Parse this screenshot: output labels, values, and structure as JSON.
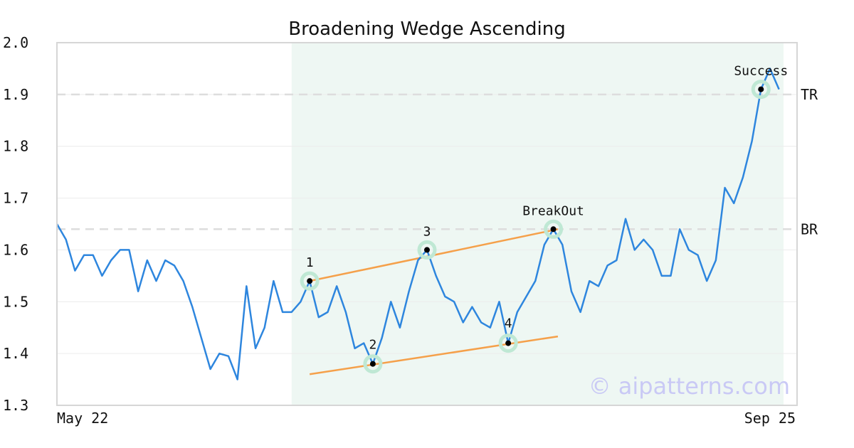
{
  "chart_data": {
    "type": "line",
    "title": "Broadening Wedge Ascending",
    "ylim": [
      1.3,
      2.0
    ],
    "y_ticks": [
      "1.3",
      "1.4",
      "1.5",
      "1.6",
      "1.7",
      "1.8",
      "1.9",
      "2.0"
    ],
    "x_range": [
      0,
      82
    ],
    "x_tick_labels": [
      {
        "label": "May 22",
        "x": 0
      },
      {
        "label": "Sep 25",
        "x": 82
      }
    ],
    "series": [
      {
        "values": [
          1.65,
          1.62,
          1.56,
          1.59,
          1.59,
          1.55,
          1.58,
          1.6,
          1.6,
          1.52,
          1.58,
          1.54,
          1.58,
          1.57,
          1.54,
          1.49,
          1.43,
          1.37,
          1.4,
          1.395,
          1.35,
          1.53,
          1.41,
          1.45,
          1.54,
          1.48,
          1.48,
          1.5,
          1.54,
          1.47,
          1.48,
          1.53,
          1.48,
          1.41,
          1.42,
          1.38,
          1.43,
          1.5,
          1.45,
          1.52,
          1.58,
          1.6,
          1.55,
          1.51,
          1.5,
          1.46,
          1.49,
          1.46,
          1.45,
          1.5,
          1.42,
          1.48,
          1.51,
          1.54,
          1.61,
          1.64,
          1.61,
          1.52,
          1.48,
          1.54,
          1.53,
          1.57,
          1.58,
          1.66,
          1.6,
          1.62,
          1.6,
          1.55,
          1.55,
          1.64,
          1.6,
          1.59,
          1.54,
          1.58,
          1.72,
          1.69,
          1.74,
          1.81,
          1.91,
          1.95,
          1.91
        ],
        "color": "#2e86de"
      }
    ],
    "pattern_region": {
      "x_start": 26,
      "x_end": 80.5,
      "color": "#eef7f3"
    },
    "reference_lines": [
      {
        "label": "TR",
        "y": 1.9
      },
      {
        "label": "BR",
        "y": 1.64
      }
    ],
    "trendlines": [
      {
        "x1": 28,
        "y1": 1.54,
        "x2": 55.5,
        "y2": 1.64,
        "color": "#f5a04a"
      },
      {
        "x1": 28,
        "y1": 1.36,
        "x2": 55.5,
        "y2": 1.433,
        "color": "#f5a04a"
      }
    ],
    "markers": [
      {
        "label": "1",
        "x": 28,
        "y": 1.54
      },
      {
        "label": "2",
        "x": 35,
        "y": 1.38
      },
      {
        "label": "3",
        "x": 41,
        "y": 1.6
      },
      {
        "label": "4",
        "x": 50,
        "y": 1.42
      },
      {
        "label": "BreakOut",
        "x": 55,
        "y": 1.64
      },
      {
        "label": "Success",
        "x": 78,
        "y": 1.91
      }
    ],
    "grid": true,
    "watermark": "© aipatterns.com"
  }
}
